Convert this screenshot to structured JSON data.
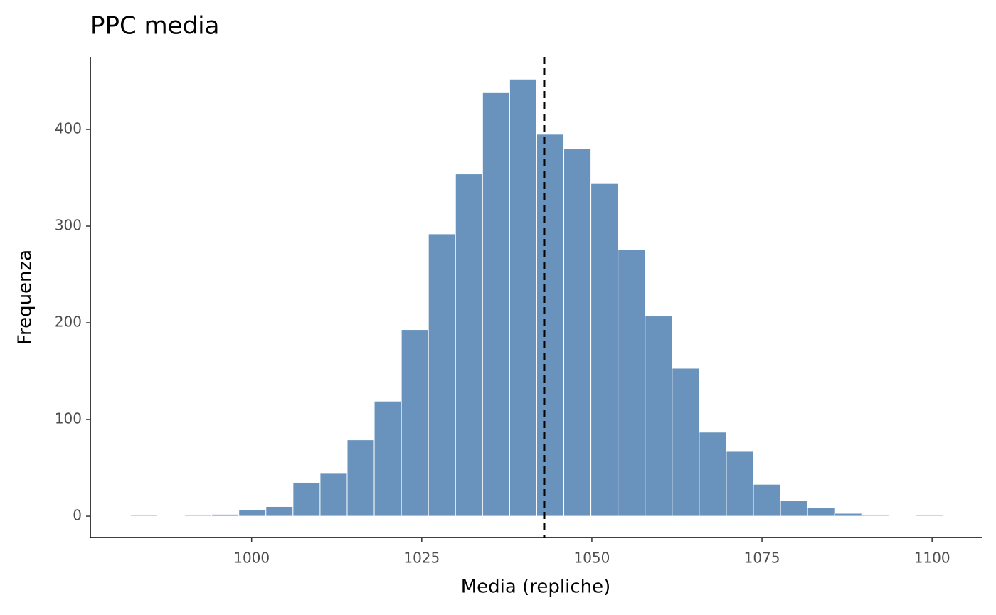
{
  "chart_data": {
    "type": "histogram",
    "title": "PPC media",
    "x_label": "Media (repliche)",
    "y_label": "Frequenza",
    "bins": [
      982.2,
      986.18,
      990.16,
      994.14,
      998.12,
      1002.1,
      1006.08,
      1010.06,
      1014.04,
      1018.02,
      1022.0,
      1025.98,
      1029.96,
      1033.94,
      1037.92,
      1041.9,
      1045.88,
      1049.86,
      1053.84,
      1057.82,
      1061.8,
      1065.78,
      1069.76,
      1073.74,
      1077.72,
      1081.7,
      1085.68,
      1089.66,
      1093.64,
      1097.62,
      1101.6
    ],
    "values": [
      1,
      0,
      1,
      2,
      7,
      10,
      35,
      45,
      79,
      119,
      193,
      292,
      354,
      438,
      452,
      395,
      380,
      344,
      276,
      207,
      153,
      87,
      67,
      33,
      16,
      9,
      3,
      1,
      0,
      1
    ],
    "color": "#6993bc",
    "vline": 1043.0,
    "xlim": [
      976.3,
      1107.3
    ],
    "ylim": [
      -22,
      475
    ],
    "xticks": [
      1000,
      1025,
      1050,
      1075,
      1100
    ],
    "yticks": [
      0,
      100,
      200,
      300,
      400
    ]
  }
}
